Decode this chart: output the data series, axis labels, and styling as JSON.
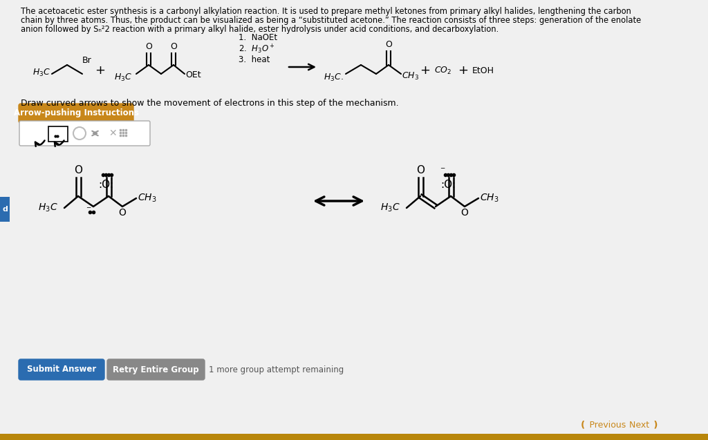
{
  "bg_color": "#f0f0f0",
  "arrow_button_text": "Arrow-pushing Instructions",
  "arrow_button_color": "#c8871a",
  "submit_button_text": "Submit Answer",
  "submit_button_color": "#2b6cb0",
  "retry_button_text": "Retry Entire Group",
  "retry_button_color": "#888888",
  "remaining_text": "1 more group attempt remaining",
  "nav_color": "#c8871a",
  "left_tab_color": "#2b6cb0",
  "bottom_bar_color": "#b8860b"
}
